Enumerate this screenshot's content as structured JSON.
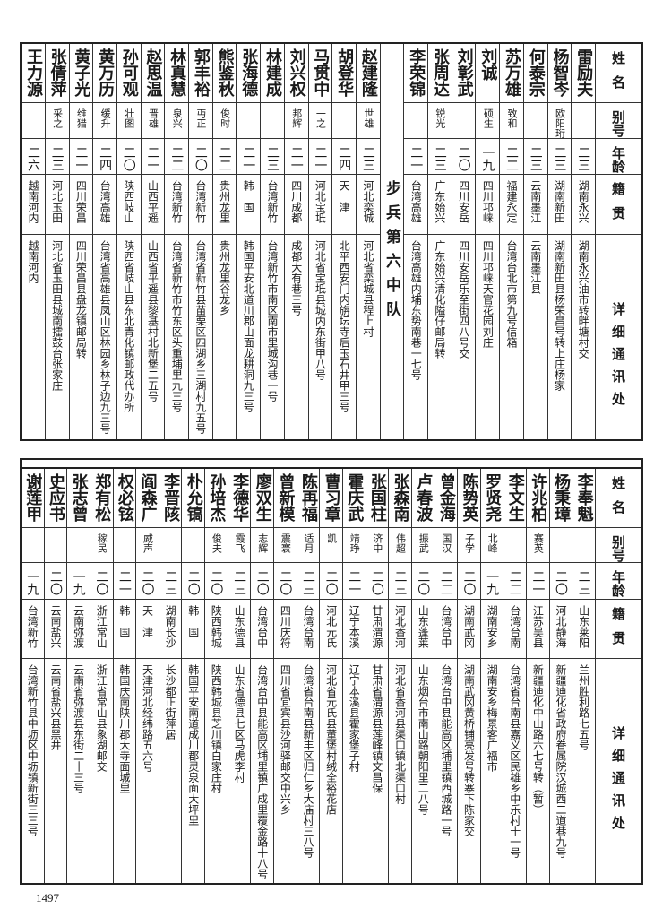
{
  "headers": [
    "姓名",
    "别号",
    "年龄",
    "籍贯",
    "详细通讯处"
  ],
  "top": {
    "right_rows": [
      {
        "name": "雷励夫",
        "alias": "",
        "age": "二三",
        "native": "湖南永兴",
        "address": "湖南永兴油市转畔塘村交"
      },
      {
        "name": "杨智岑",
        "alias": "欧阳珩",
        "age": "二三",
        "native": "湖南新田",
        "address": "湖南新田县杨荣昌号转上庄杨家"
      },
      {
        "name": "何泰宗",
        "alias": "",
        "age": "二三",
        "native": "云南墨江",
        "address": "云南墨江县"
      },
      {
        "name": "苏万雄",
        "alias": "致和",
        "age": "二二",
        "native": "福建永定",
        "address": "台湾台北市第九号信箱"
      },
      {
        "name": "刘诚",
        "alias": "硕生",
        "age": "一九",
        "native": "四川邛崃",
        "address": "四川邛崃天官花园刘庄"
      },
      {
        "name": "刘彰武",
        "alias": "",
        "age": "二〇",
        "native": "四川安岳",
        "address": "四川安岳乐至街四八号交"
      },
      {
        "name": "张周达",
        "alias": "锐光",
        "age": "二三",
        "native": "广东始兴",
        "address": "广东始兴清化隘仔邮局转"
      },
      {
        "name": "李荣锦",
        "alias": "",
        "age": "二一",
        "native": "台湾高雄",
        "address": "台湾高雄内埔东势南巷一七号"
      }
    ],
    "section_title": "步兵第六中队",
    "left_rows": [
      {
        "name": "赵建隆",
        "alias": "世雄",
        "age": "二三",
        "native": "河北栾城",
        "address": "河北省栾城县程上村"
      },
      {
        "name": "胡登华",
        "alias": "",
        "age": "二四",
        "native": "天　津",
        "address": "北平西安门内旃坛寺后玉石井甲三号"
      },
      {
        "name": "马贯中",
        "alias": "一之",
        "age": "二一",
        "native": "河北宝坻",
        "address": "河北省宝坻县城内东街甲八号"
      },
      {
        "name": "刘兴权",
        "alias": "邦辉",
        "age": "二一",
        "native": "四川成都",
        "address": "成都大有巷三号"
      },
      {
        "name": "林建成",
        "alias": "",
        "age": "二三",
        "native": "台湾新竹",
        "address": "台湾新竹市南区南市里城沟巷一号"
      },
      {
        "name": "张海德",
        "alias": "",
        "age": "二一",
        "native": "韩　国",
        "address": "韩国平安北道川郡山面龙耕洞九三号"
      },
      {
        "name": "熊鉴秋",
        "alias": "俊时",
        "age": "二二",
        "native": "贵州龙里",
        "address": "贵州龙里谷龙乡"
      },
      {
        "name": "郭丰裕",
        "alias": "丏正",
        "age": "二〇",
        "native": "台湾新竹",
        "address": "台湾省新竹县苗栗区四湖乡三湖村九五号"
      },
      {
        "name": "林真慧",
        "alias": "泉兴",
        "age": "二二",
        "native": "台湾新竹",
        "address": "台湾省新竹市竹东区头重埔里九三号"
      },
      {
        "name": "赵思温",
        "alias": "晋雄",
        "age": "二一",
        "native": "山西平遥",
        "address": "山西省平遥县黎基村北新堡二五号"
      },
      {
        "name": "孙可观",
        "alias": "壮图",
        "age": "二〇",
        "native": "陕西岐山",
        "address": "陕西省岐山县东北青化镇邮政代办所"
      },
      {
        "name": "黄万历",
        "alias": "缓升",
        "age": "二四",
        "native": "台湾高雄",
        "address": "台湾省高雄县凤山区林园乡林子边九三号"
      },
      {
        "name": "黄子光",
        "alias": "维猎",
        "age": "二一",
        "native": "四川荣昌",
        "address": "四川荣昌县盘龙镇邮局转"
      },
      {
        "name": "张倩萍",
        "alias": "采之",
        "age": "二三",
        "native": "河北玉田",
        "address": "河北省玉田县城南擂鼓台张家庄"
      },
      {
        "name": "王力源",
        "alias": "",
        "age": "二六",
        "native": "越南河内",
        "address": "越南河内"
      }
    ]
  },
  "bottom": {
    "rows": [
      {
        "name": "李奉魁",
        "alias": "",
        "age": "二三",
        "native": "山东莱阳",
        "address": "兰州胜利路七五号"
      },
      {
        "name": "杨秉璋",
        "alias": "",
        "age": "二〇",
        "native": "河北静海",
        "address": "新疆迪化省政府眷属院汉城西二道巷九号"
      },
      {
        "name": "许兆柏",
        "alias": "赛英",
        "age": "二一",
        "native": "江苏吴县",
        "address": "新疆迪化中山路六七号转（暂）"
      },
      {
        "name": "李文生",
        "alias": "",
        "age": "二二",
        "native": "台湾台南",
        "address": "台湾省台南县嘉义区民雄乡中乐村十一号"
      },
      {
        "name": "罗贤尧",
        "alias": "北峰",
        "age": "一九",
        "native": "湖南安乡",
        "address": "湖南安乡梅景客广福市"
      },
      {
        "name": "陈势英",
        "alias": "子学",
        "age": "二〇",
        "native": "湖南武冈",
        "address": "湖南武冈黄桥铺亮发号转寨下陈家交"
      },
      {
        "name": "曾金海",
        "alias": "国汉",
        "age": "二二",
        "native": "台湾台中",
        "address": "台湾台中县能高区埔里镇西城路一号"
      },
      {
        "name": "卢春波",
        "alias": "振武",
        "age": "二〇",
        "native": "山东蓬莱",
        "address": "山东烟台市南山路朝阳里二八号"
      },
      {
        "name": "张森南",
        "alias": "伟超",
        "age": "二三",
        "native": "河北香河",
        "address": "河北省香河县渠口镇北渠口村"
      },
      {
        "name": "张国柱",
        "alias": "济中",
        "age": "二〇",
        "native": "甘肃渭源",
        "address": "甘肃省渭源县莲峰镇文昌保"
      },
      {
        "name": "霍庆武",
        "alias": "靖琤",
        "age": "二一",
        "native": "辽宁本溪",
        "address": "辽宁本溪县霍家堡子村"
      },
      {
        "name": "曹习章",
        "alias": "凯",
        "age": "二〇",
        "native": "河北元氏",
        "address": "河北省元氏县董堡村绒全裕花店"
      },
      {
        "name": "陈再福",
        "alias": "适月",
        "age": "二三",
        "native": "台湾台南",
        "address": "台湾省台南县新丰区归仁乡大庙村三八号"
      },
      {
        "name": "曾新模",
        "alias": "震寰",
        "age": "二〇",
        "native": "四川庆符",
        "address": "四川省宜宾县沙河驿邮交中兴乡"
      },
      {
        "name": "廖双生",
        "alias": "志辉",
        "age": "二〇",
        "native": "台湾台中",
        "address": "台湾台中县能高区埔里镇广成里覆金路十八号"
      },
      {
        "name": "李德华",
        "alias": "霞飞",
        "age": "二三",
        "native": "山东德县",
        "address": "山东省德县七区马虎李村"
      },
      {
        "name": "孙培杰",
        "alias": "俊夫",
        "age": "二〇",
        "native": "陕西韩城",
        "address": "陕西韩城县芝川镇白家庄村"
      },
      {
        "name": "朴允镐",
        "alias": "",
        "age": "二〇",
        "native": "韩　国",
        "address": "韩国平安南道成川郡灵泉面大坪里"
      },
      {
        "name": "李晋陔",
        "alias": "",
        "age": "二三",
        "native": "湖南长沙",
        "address": "长沙都正街萍居"
      },
      {
        "name": "阎森广",
        "alias": "威声",
        "age": "二〇",
        "native": "天　津",
        "address": "天津河北经纬路五六号"
      },
      {
        "name": "权必铉",
        "alias": "",
        "age": "二一",
        "native": "韩　国",
        "address": "韩国庆南陕川郡大寺面城里"
      },
      {
        "name": "郑有松",
        "alias": "稼民",
        "age": "二〇",
        "native": "浙江常山",
        "address": "浙江省常山县象湖邮交"
      },
      {
        "name": "张志曾",
        "alias": "",
        "age": "一九",
        "native": "云南弥渡",
        "address": "云南省弥渡县东街二十三号"
      },
      {
        "name": "史应书",
        "alias": "",
        "age": "二〇",
        "native": "云南盐兴",
        "address": "云南省盐兴县黑井"
      },
      {
        "name": "谢莲甲",
        "alias": "",
        "age": "一九",
        "native": "台湾新竹",
        "address": "台湾新竹县中坜区中坜镇新街三三号"
      }
    ]
  },
  "page_number": "1497"
}
